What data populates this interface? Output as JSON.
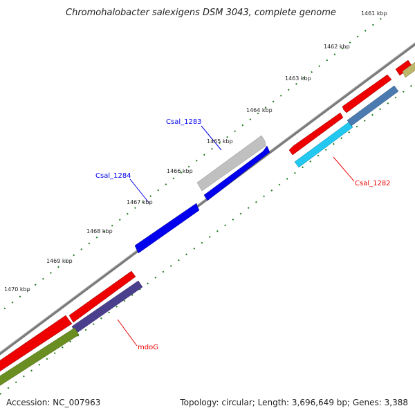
{
  "title": "Chromohalobacter salexigens DSM 3043, complete genome",
  "footer": {
    "accession": "Accession: NC_007963",
    "summary": "Topology: circular; Length: 3,696,649 bp; Genes: 3,388"
  },
  "ticks": [
    "1461 kbp",
    "1462 kbp",
    "1463 kbp",
    "1464 kbp",
    "1465 kbp",
    "1466 kbp",
    "1467 kbp",
    "1468 kbp",
    "1469 kbp",
    "1470 kbp"
  ],
  "gene_labels": {
    "csal_1283": "Csal_1283",
    "csal_1284": "Csal_1284",
    "csal_1282": "Csal_1282",
    "mdoG": "mdoG"
  },
  "colors": {
    "backbone": "#7a7a7a",
    "red": "#ee0000",
    "blue": "#0000ee",
    "grey": "#c0c0c0",
    "steel": "#4a7ab0",
    "cyan": "#22c8f0",
    "navy": "#4a3f8c",
    "olive": "#6b8e23",
    "khaki": "#bdb76b",
    "tick": "#1a7a1a"
  }
}
